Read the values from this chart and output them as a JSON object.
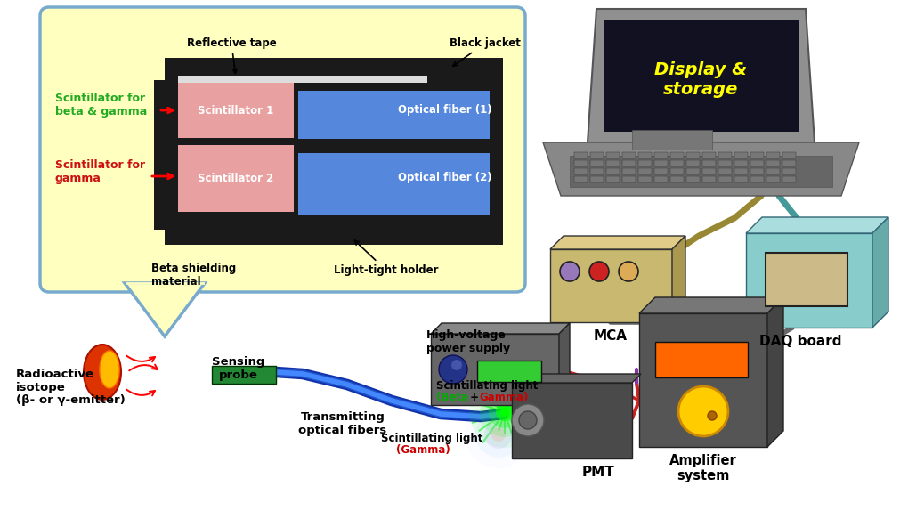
{
  "bg_color": "#ffffff",
  "bubble_bg": "#ffffc0",
  "bubble_border": "#88aacc",
  "labels": {
    "reflective_tape": "Reflective tape",
    "black_jacket": "Black jacket",
    "scint1": "Scintillator 1",
    "scint2": "Scintillator 2",
    "fiber1": "Optical fiber (1)",
    "fiber2": "Optical fiber (2)",
    "beta_shield": "Beta shielding\nmaterial",
    "light_tight": "Light-tight holder",
    "scint_beta_gamma": "Scintillator for\nbeta & gamma",
    "scint_gamma": "Scintillator for\ngamma",
    "radioactive": "Radioactive\nisotope\n(β- or γ-emitter)",
    "sensing": "Sensing\nprobe",
    "transmitting": "Transmitting\noptical fibers",
    "scint_light1": "Scintillating light",
    "scint_light1b_green": "(Beta",
    "scint_light1b_plus": " + ",
    "scint_light1b_red": "Gamma)",
    "scint_light2": "Scintillating light",
    "scint_light2b": "(Gamma)",
    "pmt": "PMT",
    "hv_supply": "High-voltage\npower supply",
    "amplifier": "Amplifier\nsystem",
    "mca": "MCA",
    "daq": "DAQ board",
    "display": "Display &\nstorage"
  },
  "colors": {
    "scint_pink": "#e8a0a0",
    "fiber_blue": "#5588dd",
    "black": "#1a1a1a",
    "dark_gray": "#444444",
    "mid_gray": "#666666",
    "light_gray": "#999999",
    "silver": "#aaaaaa",
    "mca_tan": "#c8b870",
    "daq_teal": "#88cccc",
    "amp_dark": "#555555",
    "hv_dark": "#666666",
    "pmt_dark": "#555555",
    "green_glow": "#00ff00",
    "blue_glow": "#aaccff",
    "pink_glow": "#ffaaaa",
    "laptop_screen_bg": "#111122",
    "laptop_body": "#888888",
    "cable_olive": "#998833",
    "cable_teal": "#449999",
    "cable_gray": "#666666",
    "cable_red": "#cc2222",
    "cable_purple": "#8833aa"
  }
}
